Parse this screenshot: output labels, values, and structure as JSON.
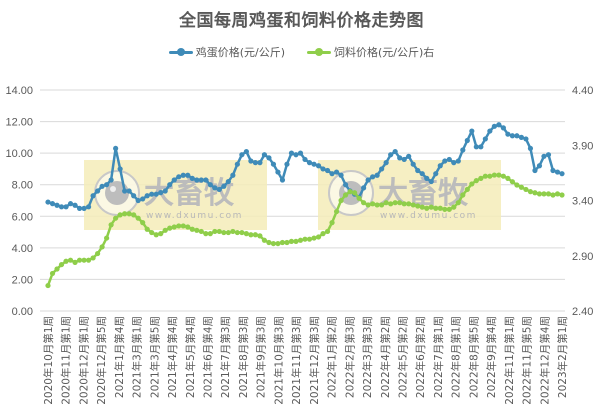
{
  "header": {
    "title": "全国每周鸡蛋和饲料价格走势图"
  },
  "legend": [
    {
      "label": "鸡蛋价格(元/公斤)",
      "color": "#3f8bb8"
    },
    {
      "label": "饲料价格(元/公斤)右",
      "color": "#8fce4a"
    }
  ],
  "watermark": {
    "brand": "大畜牧",
    "url": "www.dxumu.com"
  },
  "chart_data": {
    "type": "line",
    "title": "全国每周鸡蛋和饲料价格走势图",
    "xlabel": "",
    "ylabel": "",
    "y_left": {
      "ticks": [
        "0.00",
        "2.00",
        "4.00",
        "6.00",
        "8.00",
        "10.00",
        "12.00",
        "14.00"
      ],
      "ylim": [
        0,
        14
      ]
    },
    "y_right": {
      "ticks": [
        "2.40",
        "2.90",
        "3.40",
        "3.90",
        "4.40"
      ],
      "ylim": [
        2.4,
        4.4
      ]
    },
    "grid": true,
    "legend_position": "top",
    "x_tick_labels": [
      "2020年10月第1周",
      "2020年11月第1周",
      "2020年12月第1周",
      "2020年12月第5周",
      "2021年1月第4周",
      "2021年3月第1周",
      "2021年3月第5周",
      "2021年4月第4周",
      "2021年5月第4周",
      "2021年6月第4周",
      "2021年7月第3周",
      "2021年8月第3周",
      "2021年9月第3周",
      "2021年10月第3周",
      "2021年11月第3周",
      "2021年12月第3周",
      "2022年1月第2周",
      "2022年2月第3周",
      "2022年3月第3周",
      "2022年4月第2周",
      "2022年5月第2周",
      "2022年6月第2周",
      "2022年7月第1周",
      "2022年8月第1周",
      "2022年8月第5周",
      "2022年9月第4周",
      "2022年11月第1周",
      "2022年11月第5周",
      "2022年12月第4周",
      "2023年2月第1周"
    ],
    "points_per_tick": 4,
    "series": [
      {
        "name": "鸡蛋价格(元/公斤)",
        "axis": "left",
        "color": "#3f8bb8",
        "values": [
          6.9,
          6.8,
          6.7,
          6.6,
          6.6,
          6.8,
          6.7,
          6.5,
          6.5,
          6.6,
          7.3,
          7.6,
          7.9,
          8.0,
          8.3,
          10.3,
          9.0,
          7.6,
          7.6,
          7.3,
          7.0,
          7.1,
          7.3,
          7.4,
          7.4,
          7.5,
          7.6,
          8.0,
          8.3,
          8.5,
          8.6,
          8.6,
          8.4,
          8.3,
          8.3,
          8.3,
          8.0,
          7.8,
          7.7,
          7.9,
          8.2,
          8.6,
          9.3,
          9.9,
          10.1,
          9.5,
          9.4,
          9.4,
          9.9,
          9.7,
          9.3,
          8.8,
          8.3,
          9.3,
          10.0,
          9.9,
          10.0,
          9.6,
          9.4,
          9.3,
          9.2,
          9.0,
          8.9,
          8.7,
          8.8,
          8.6,
          8.0,
          7.6,
          7.4,
          7.2,
          7.8,
          8.3,
          8.5,
          8.6,
          9.0,
          9.4,
          9.9,
          10.1,
          9.7,
          9.6,
          9.8,
          9.3,
          8.9,
          8.7,
          8.4,
          8.2,
          8.7,
          9.2,
          9.5,
          9.6,
          9.4,
          9.5,
          10.2,
          10.8,
          11.4,
          10.4,
          10.4,
          10.9,
          11.4,
          11.7,
          11.8,
          11.6,
          11.2,
          11.1,
          11.1,
          11.0,
          10.9,
          10.3,
          8.9,
          9.2,
          9.8,
          9.9,
          8.9,
          8.8,
          8.7
        ]
      },
      {
        "name": "饲料价格(元/公斤)右",
        "axis": "right",
        "color": "#8fce4a",
        "values": [
          2.63,
          2.74,
          2.78,
          2.82,
          2.85,
          2.86,
          2.84,
          2.86,
          2.86,
          2.86,
          2.88,
          2.92,
          2.98,
          3.06,
          3.18,
          3.24,
          3.27,
          3.28,
          3.28,
          3.27,
          3.24,
          3.2,
          3.14,
          3.11,
          3.09,
          3.1,
          3.13,
          3.15,
          3.16,
          3.17,
          3.17,
          3.16,
          3.14,
          3.13,
          3.12,
          3.1,
          3.1,
          3.12,
          3.12,
          3.11,
          3.11,
          3.12,
          3.11,
          3.11,
          3.1,
          3.09,
          3.09,
          3.08,
          3.04,
          3.02,
          3.01,
          3.01,
          3.02,
          3.02,
          3.03,
          3.03,
          3.04,
          3.05,
          3.05,
          3.06,
          3.07,
          3.1,
          3.12,
          3.2,
          3.3,
          3.4,
          3.45,
          3.48,
          3.47,
          3.42,
          3.38,
          3.36,
          3.37,
          3.36,
          3.36,
          3.38,
          3.37,
          3.38,
          3.38,
          3.37,
          3.37,
          3.36,
          3.35,
          3.34,
          3.33,
          3.34,
          3.33,
          3.33,
          3.32,
          3.32,
          3.34,
          3.38,
          3.45,
          3.5,
          3.55,
          3.58,
          3.6,
          3.62,
          3.62,
          3.63,
          3.63,
          3.62,
          3.6,
          3.57,
          3.54,
          3.52,
          3.5,
          3.48,
          3.47,
          3.46,
          3.46,
          3.46,
          3.45,
          3.46,
          3.45
        ]
      }
    ]
  }
}
